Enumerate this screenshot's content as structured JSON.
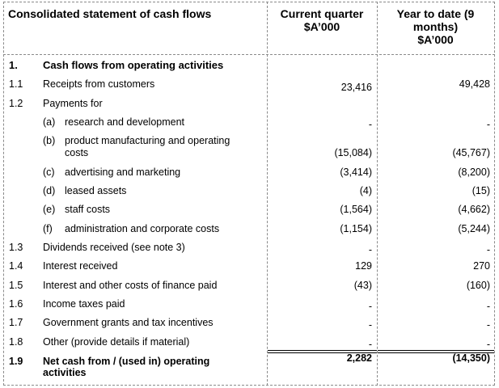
{
  "header": {
    "title": "Consolidated statement of cash flows",
    "col1": [
      "Current quarter",
      "$A’000"
    ],
    "col2": [
      "Year to date (9",
      "months)",
      "$A’000"
    ]
  },
  "section": {
    "num": "1.",
    "label": "Cash flows from operating activities"
  },
  "rows": [
    {
      "num": "1.1",
      "label": "Receipts from customers",
      "cq": "23,416",
      "ytd": "49,428"
    },
    {
      "num": "1.2",
      "label": "Payments for",
      "cq": "",
      "ytd": ""
    },
    {
      "num": "",
      "sub": "(a)",
      "label": "research and development",
      "cq": "-",
      "ytd": "-"
    },
    {
      "num": "",
      "sub": "(b)",
      "label": "product manufacturing and operating",
      "label2": "costs",
      "cq": "(15,084)",
      "ytd": "(45,767)"
    },
    {
      "num": "",
      "sub": "(c)",
      "label": "advertising and marketing",
      "cq": "(3,414)",
      "ytd": "(8,200)"
    },
    {
      "num": "",
      "sub": "(d)",
      "label": "leased assets",
      "cq": "(4)",
      "ytd": "(15)"
    },
    {
      "num": "",
      "sub": "(e)",
      "label": "staff costs",
      "cq": "(1,564)",
      "ytd": "(4,662)"
    },
    {
      "num": "",
      "sub": "(f)",
      "label": "administration and corporate costs",
      "cq": "(1,154)",
      "ytd": "(5,244)"
    },
    {
      "num": "1.3",
      "label": "Dividends received (see note 3)",
      "cq": "-",
      "ytd": "-"
    },
    {
      "num": "1.4",
      "label": "Interest received",
      "cq": "129",
      "ytd": "270"
    },
    {
      "num": "1.5",
      "label": "Interest and other costs of finance paid",
      "cq": "(43)",
      "ytd": "(160)"
    },
    {
      "num": "1.6",
      "label": "Income taxes paid",
      "cq": "-",
      "ytd": "-"
    },
    {
      "num": "1.7",
      "label": "Government grants and tax incentives",
      "cq": "-",
      "ytd": "-"
    },
    {
      "num": "1.8",
      "label": "Other (provide details if material)",
      "cq": "-",
      "ytd": "-"
    }
  ],
  "total": {
    "num": "1.9",
    "label": "Net cash from / (used in) operating",
    "label2": "activities",
    "cq": "2,282",
    "ytd": "(14,350)"
  }
}
